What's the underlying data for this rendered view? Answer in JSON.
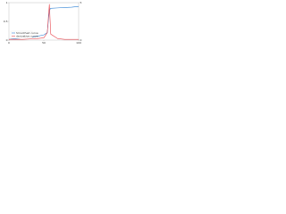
{
  "chart_data": {
    "type": "line",
    "x": [
      0,
      10,
      20,
      30,
      40,
      50,
      55,
      58,
      60,
      70,
      80,
      90,
      100
    ],
    "series": [
      {
        "name": "Smoothed curve",
        "color": "#2a7fd4",
        "values": [
          0.02,
          0.04,
          0.06,
          0.08,
          0.1,
          0.14,
          0.2,
          0.8,
          0.85,
          0.86,
          0.87,
          0.88,
          0.9
        ]
      },
      {
        "name": "derivative curve",
        "color": "#e8474f",
        "axis": "y2",
        "values": [
          0.1,
          0.1,
          0.1,
          0.15,
          0.2,
          0.3,
          1,
          4.8,
          0.8,
          0.2,
          0.1,
          0.1,
          0.1
        ]
      }
    ],
    "xlim": [
      0,
      100
    ],
    "xticks": [
      0,
      50,
      100
    ],
    "ylim": [
      0,
      1
    ],
    "yticks": [
      0,
      0.5,
      1
    ],
    "y2lim": [
      0,
      5
    ],
    "y2ticks": [
      0,
      5
    ],
    "legend": "lower left"
  }
}
